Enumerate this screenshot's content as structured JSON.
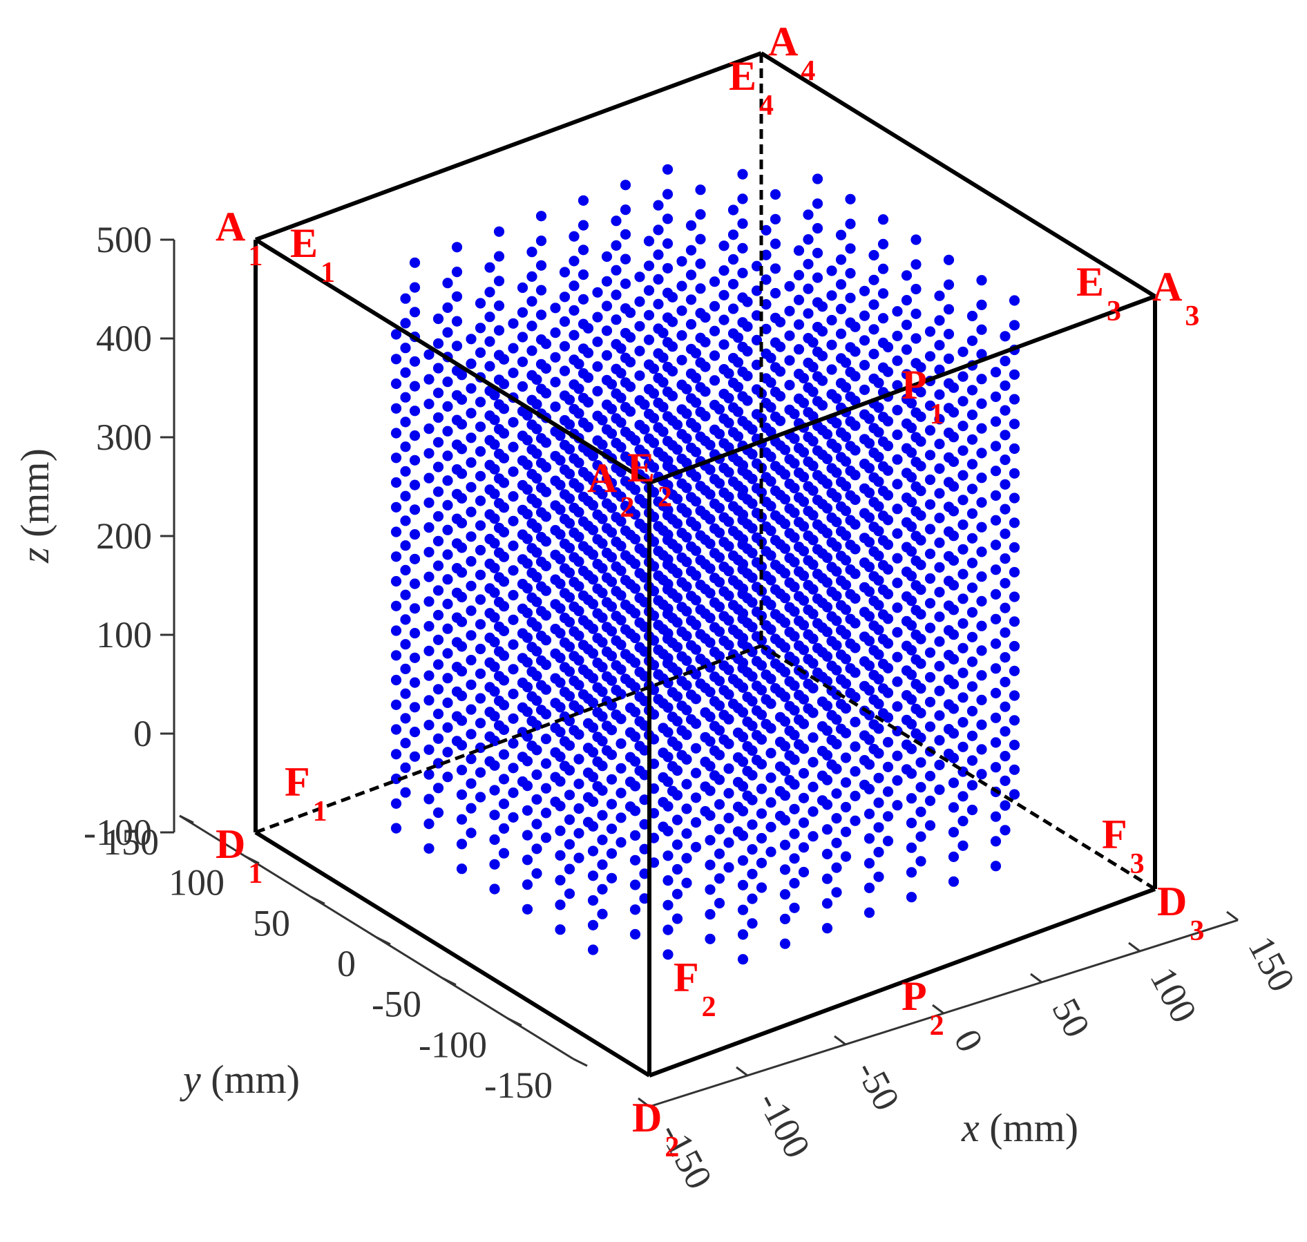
{
  "chart_data": {
    "type": "scatter",
    "title": "",
    "xlabel": {
      "var": "x",
      "unit": " (mm)"
    },
    "ylabel": {
      "var": "y",
      "unit": " (mm)"
    },
    "zlabel": {
      "var": "z",
      "unit": " (mm)"
    },
    "xlim": [
      -150,
      150
    ],
    "ylim": [
      -150,
      150
    ],
    "zlim": [
      -100,
      500
    ],
    "xticks": [
      "-150",
      "-100",
      "-50",
      "0",
      "50",
      "100",
      "150"
    ],
    "yticks": [
      "-150",
      "-100",
      "-50",
      "0",
      "50",
      "100",
      "150"
    ],
    "zticks": [
      "-100",
      "0",
      "100",
      "200",
      "300",
      "400",
      "500"
    ],
    "grid": false,
    "series": [
      {
        "color": "#0000ee",
        "grid_points": {
          "x_range": [
            -125,
            125
          ],
          "y_range": [
            -125,
            125
          ],
          "z_range": [
            -50,
            450
          ],
          "step_xy": 25,
          "step_z": 25,
          "shape": "octagonal prism (square with chamfered corners)",
          "chamfer_sum": 200
        }
      }
    ],
    "box": {
      "x": [
        -150,
        150
      ],
      "y": [
        -150,
        150
      ],
      "z": [
        -100,
        500
      ],
      "color": "#000000"
    },
    "vertex_labels": [
      {
        "name": "A",
        "sub": "1"
      },
      {
        "name": "A",
        "sub": "2"
      },
      {
        "name": "A",
        "sub": "3"
      },
      {
        "name": "A",
        "sub": "4"
      },
      {
        "name": "E",
        "sub": "1"
      },
      {
        "name": "E",
        "sub": "2"
      },
      {
        "name": "E",
        "sub": "3"
      },
      {
        "name": "E",
        "sub": "4"
      },
      {
        "name": "D",
        "sub": "1"
      },
      {
        "name": "D",
        "sub": "2"
      },
      {
        "name": "D",
        "sub": "3"
      },
      {
        "name": "F",
        "sub": "1"
      },
      {
        "name": "F",
        "sub": "2"
      },
      {
        "name": "F",
        "sub": "3"
      },
      {
        "name": "P",
        "sub": "1"
      },
      {
        "name": "P",
        "sub": "2"
      }
    ],
    "label_color": "#ff0000"
  }
}
